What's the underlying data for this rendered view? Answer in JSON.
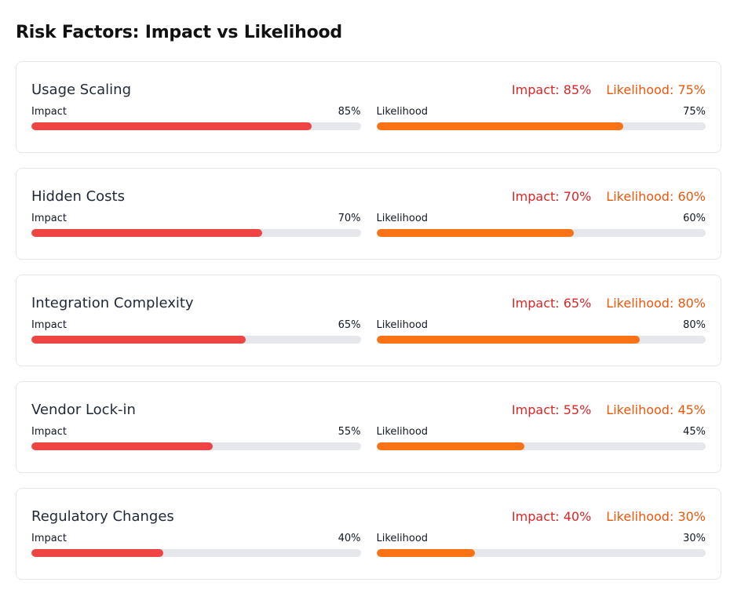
{
  "title": "Risk Factors: Impact vs Likelihood",
  "colors": {
    "impact_text": "#dc2626",
    "likelihood_text": "#ea580c",
    "impact_bar": "#ef4444",
    "likelihood_bar": "#f97316",
    "track": "#e5e7eb"
  },
  "risks": [
    {
      "name": "Usage Scaling",
      "impact_summary": "Impact: 85%",
      "likelihood_summary": "Likelihood: 75%",
      "impact_label": "Impact",
      "impact_value": "85%",
      "impact": 85,
      "likelihood_label": "Likelihood",
      "likelihood_value": "75%",
      "likelihood": 75
    },
    {
      "name": "Hidden Costs",
      "impact_summary": "Impact: 70%",
      "likelihood_summary": "Likelihood: 60%",
      "impact_label": "Impact",
      "impact_value": "70%",
      "impact": 70,
      "likelihood_label": "Likelihood",
      "likelihood_value": "60%",
      "likelihood": 60
    },
    {
      "name": "Integration Complexity",
      "impact_summary": "Impact: 65%",
      "likelihood_summary": "Likelihood: 80%",
      "impact_label": "Impact",
      "impact_value": "65%",
      "impact": 65,
      "likelihood_label": "Likelihood",
      "likelihood_value": "80%",
      "likelihood": 80
    },
    {
      "name": "Vendor Lock-in",
      "impact_summary": "Impact: 55%",
      "likelihood_summary": "Likelihood: 45%",
      "impact_label": "Impact",
      "impact_value": "55%",
      "impact": 55,
      "likelihood_label": "Likelihood",
      "likelihood_value": "45%",
      "likelihood": 45
    },
    {
      "name": "Regulatory Changes",
      "impact_summary": "Impact: 40%",
      "likelihood_summary": "Likelihood: 30%",
      "impact_label": "Impact",
      "impact_value": "40%",
      "impact": 40,
      "likelihood_label": "Likelihood",
      "likelihood_value": "30%",
      "likelihood": 30
    }
  ]
}
